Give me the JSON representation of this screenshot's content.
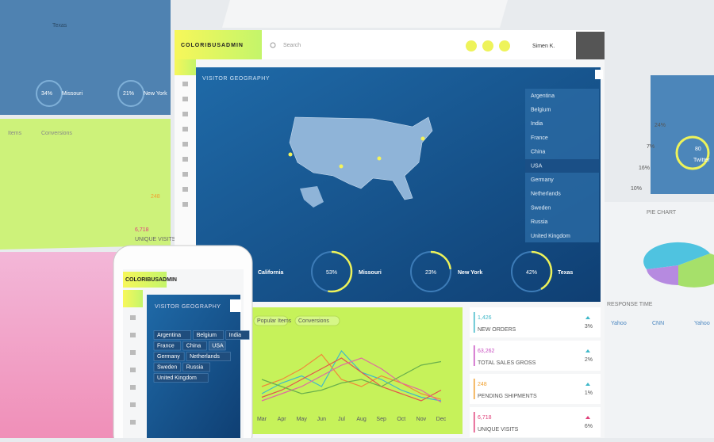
{
  "background": {
    "map_label": "Texas",
    "gauges": [
      "34%",
      "21%"
    ],
    "gauge_labels": [
      "Missouri",
      "New York"
    ],
    "chart_tabs": [
      "Items",
      "Conversions"
    ],
    "stats": [
      "248",
      "6,718"
    ],
    "stat_labels": [
      "UNIQUE VISITS"
    ],
    "pie_title": "PIE CHART",
    "response_title": "RESPONSE TIME",
    "response_sources": [
      "Yahoo",
      "CNN",
      "Yahoo"
    ],
    "twitter_value": "80",
    "twitter_label": "Twitter",
    "percents": [
      "24%",
      "7%",
      "16%",
      "10%"
    ]
  },
  "dashboard": {
    "brand": "COLORIBUSADMIN",
    "search": "Search",
    "user": "Simen K.",
    "geo_title": "VISITOR GEOGRAPHY",
    "countries": [
      "Argentina",
      "Belgium",
      "India",
      "France",
      "China",
      "USA",
      "Germany",
      "Netherlands",
      "Sweden",
      "Russia",
      "United Kingdom"
    ],
    "selected_country": 5,
    "states": [
      "California",
      "Missouri",
      "New York",
      "Texas"
    ],
    "gauges": [
      {
        "value": 53,
        "label": "53%"
      },
      {
        "value": 23,
        "label": "23%"
      },
      {
        "value": 42,
        "label": "42%"
      }
    ],
    "tabs": [
      "Popular Items",
      "Conversions"
    ],
    "chart": {
      "type": "line",
      "categories": [
        "Mar",
        "Apr",
        "May",
        "Jun",
        "Jul",
        "Aug",
        "Sep",
        "Oct",
        "Nov",
        "Dec"
      ],
      "ylim": [
        0,
        100
      ],
      "series": [
        {
          "color": "#3fb8c9",
          "values": [
            20,
            35,
            45,
            30,
            80,
            50,
            40,
            25,
            15,
            10
          ]
        },
        {
          "color": "#f0883a",
          "values": [
            30,
            40,
            55,
            75,
            40,
            30,
            45,
            35,
            20,
            12
          ]
        },
        {
          "color": "#e2574c",
          "values": [
            15,
            25,
            40,
            55,
            70,
            50,
            30,
            20,
            10,
            25
          ]
        },
        {
          "color": "#e06aa0",
          "values": [
            10,
            20,
            30,
            45,
            60,
            70,
            55,
            35,
            25,
            8
          ]
        },
        {
          "color": "#6ab04c",
          "values": [
            40,
            30,
            20,
            25,
            35,
            40,
            30,
            45,
            60,
            65
          ]
        }
      ]
    },
    "stats": [
      {
        "value": "1,426",
        "label": "NEW ORDERS",
        "change": "3%",
        "color": "#3fb8c9"
      },
      {
        "value": "63,262",
        "label": "TOTAL SALES GROSS",
        "change": "2%",
        "color": "#c94fc2"
      },
      {
        "value": "248",
        "label": "PENDING SHIPMENTS",
        "change": "1%",
        "color": "#f0a030"
      },
      {
        "value": "6,718",
        "label": "UNIQUE VISITS",
        "change": "6%",
        "color": "#e0407a"
      }
    ]
  },
  "phone": {
    "brand": "COLORIBUSADMIN",
    "geo_title": "VISITOR GEOGRAPHY"
  }
}
